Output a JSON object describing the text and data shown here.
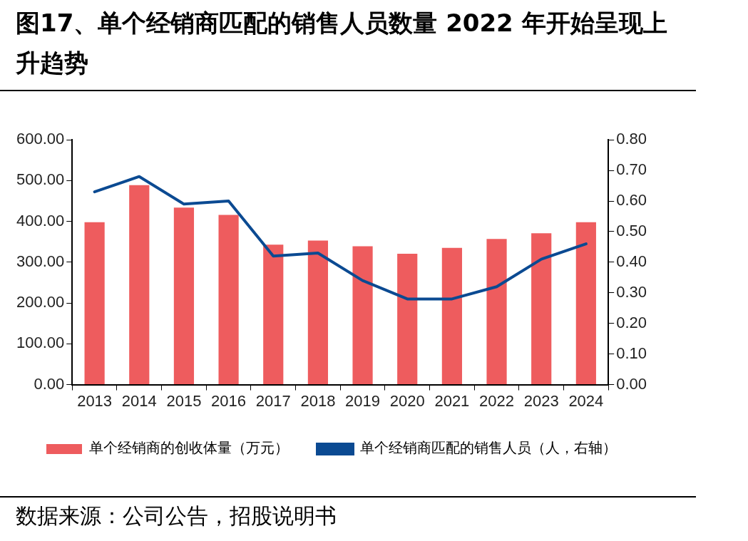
{
  "chart_data": {
    "type": "bar",
    "title": "图17、单个经销商匹配的销售人员数量 2022 年开始呈现上升趋势",
    "categories": [
      "2013",
      "2014",
      "2015",
      "2016",
      "2017",
      "2018",
      "2019",
      "2020",
      "2021",
      "2022",
      "2023",
      "2024"
    ],
    "series": [
      {
        "name": "单个经销商的创收体量（万元）",
        "color": "#ee5c5e",
        "values": [
          398,
          489,
          434,
          416,
          343,
          353,
          339,
          321,
          335,
          357,
          371,
          398
        ]
      },
      {
        "name": "单个经销商匹配的销售人员（人，右轴）",
        "type": "line",
        "axis": "y2",
        "color": "#0b4a92",
        "values": [
          0.63,
          0.68,
          0.59,
          0.6,
          0.42,
          0.43,
          0.34,
          0.28,
          0.28,
          0.32,
          0.41,
          0.46
        ]
      }
    ],
    "ylim": [
      0,
      600
    ],
    "yticks": [
      {
        "value": 0,
        "label": "0.00"
      },
      {
        "value": 100,
        "label": "100.00"
      },
      {
        "value": 200,
        "label": "200.00"
      },
      {
        "value": 300,
        "label": "300.00"
      },
      {
        "value": 400,
        "label": "400.00"
      },
      {
        "value": 500,
        "label": "500.00"
      },
      {
        "value": 600,
        "label": "600.00"
      }
    ],
    "y2lim": [
      0,
      0.8
    ],
    "y2ticks": [
      {
        "value": 0,
        "label": "0.00"
      },
      {
        "value": 0.1,
        "label": "0.10"
      },
      {
        "value": 0.2,
        "label": "0.20"
      },
      {
        "value": 0.3,
        "label": "0.30"
      },
      {
        "value": 0.4,
        "label": "0.40"
      },
      {
        "value": 0.5,
        "label": "0.50"
      },
      {
        "value": 0.6,
        "label": "0.60"
      },
      {
        "value": 0.7,
        "label": "0.70"
      },
      {
        "value": 0.8,
        "label": "0.80"
      }
    ],
    "grid": false,
    "legend": "bottom",
    "marker": "none",
    "line_style": "solid",
    "annotations": [
      "数据来源：公司公告，招股说明书"
    ]
  }
}
